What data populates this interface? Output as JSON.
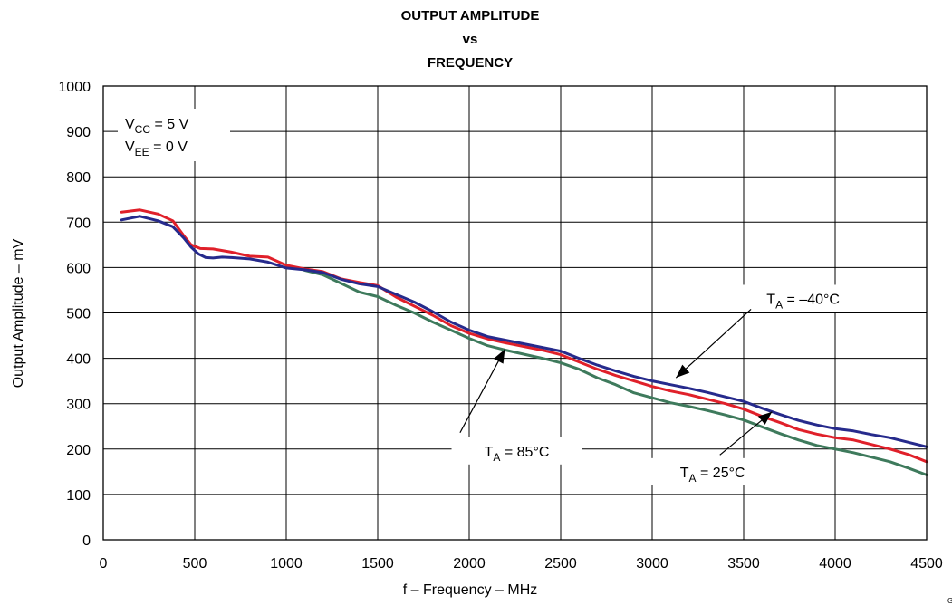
{
  "chart_data": {
    "type": "line",
    "title_lines": [
      "OUTPUT AMPLITUDE",
      "vs",
      "FREQUENCY"
    ],
    "xlabel": "f – Frequency – MHz",
    "ylabel": "Output Amplitude – mV",
    "xlim": [
      0,
      4500
    ],
    "ylim": [
      0,
      1000
    ],
    "xticks": [
      0,
      500,
      1000,
      1500,
      2000,
      2500,
      3000,
      3500,
      4000,
      4500
    ],
    "yticks": [
      0,
      100,
      200,
      300,
      400,
      500,
      600,
      700,
      800,
      900,
      1000
    ],
    "grid": true,
    "conditions": [
      {
        "main": "V",
        "sub": "CC",
        "rest": " = 5 V"
      },
      {
        "main": "V",
        "sub": "EE",
        "rest": " = 0 V"
      }
    ],
    "series": [
      {
        "name": "TA = 25°C",
        "label": {
          "main": "T",
          "sub": "A",
          "rest": " = 25°C"
        },
        "color": "#e0202a",
        "points": [
          [
            100,
            722
          ],
          [
            200,
            727
          ],
          [
            300,
            718
          ],
          [
            380,
            703
          ],
          [
            440,
            670
          ],
          [
            480,
            650
          ],
          [
            530,
            642
          ],
          [
            600,
            641
          ],
          [
            700,
            634
          ],
          [
            800,
            625
          ],
          [
            900,
            623
          ],
          [
            1000,
            605
          ],
          [
            1100,
            597
          ],
          [
            1200,
            591
          ],
          [
            1300,
            575
          ],
          [
            1400,
            567
          ],
          [
            1500,
            560
          ],
          [
            1600,
            535
          ],
          [
            1700,
            515
          ],
          [
            1800,
            495
          ],
          [
            1900,
            472
          ],
          [
            2000,
            455
          ],
          [
            2100,
            443
          ],
          [
            2200,
            434
          ],
          [
            2300,
            426
          ],
          [
            2400,
            418
          ],
          [
            2500,
            408
          ],
          [
            2600,
            392
          ],
          [
            2700,
            376
          ],
          [
            2800,
            362
          ],
          [
            2900,
            350
          ],
          [
            3000,
            338
          ],
          [
            3100,
            328
          ],
          [
            3200,
            320
          ],
          [
            3300,
            310
          ],
          [
            3400,
            300
          ],
          [
            3500,
            288
          ],
          [
            3600,
            272
          ],
          [
            3700,
            258
          ],
          [
            3800,
            243
          ],
          [
            3900,
            233
          ],
          [
            4000,
            225
          ],
          [
            4100,
            220
          ],
          [
            4200,
            210
          ],
          [
            4300,
            200
          ],
          [
            4400,
            188
          ],
          [
            4500,
            172
          ]
        ]
      },
      {
        "name": "TA = -40°C",
        "label": {
          "main": "T",
          "sub": "A",
          "rest": " = –40°C"
        },
        "color": "#262a8c",
        "points": [
          [
            100,
            705
          ],
          [
            200,
            713
          ],
          [
            300,
            703
          ],
          [
            380,
            690
          ],
          [
            440,
            665
          ],
          [
            480,
            645
          ],
          [
            520,
            630
          ],
          [
            560,
            622
          ],
          [
            600,
            621
          ],
          [
            650,
            623
          ],
          [
            700,
            622
          ],
          [
            800,
            619
          ],
          [
            900,
            612
          ],
          [
            1000,
            599
          ],
          [
            1100,
            595
          ],
          [
            1200,
            589
          ],
          [
            1300,
            574
          ],
          [
            1400,
            564
          ],
          [
            1500,
            558
          ],
          [
            1600,
            541
          ],
          [
            1700,
            524
          ],
          [
            1800,
            503
          ],
          [
            1900,
            480
          ],
          [
            2000,
            462
          ],
          [
            2100,
            448
          ],
          [
            2200,
            440
          ],
          [
            2300,
            432
          ],
          [
            2400,
            424
          ],
          [
            2500,
            416
          ],
          [
            2600,
            400
          ],
          [
            2700,
            385
          ],
          [
            2800,
            372
          ],
          [
            2900,
            360
          ],
          [
            3000,
            350
          ],
          [
            3100,
            342
          ],
          [
            3200,
            334
          ],
          [
            3300,
            325
          ],
          [
            3400,
            315
          ],
          [
            3500,
            305
          ],
          [
            3600,
            290
          ],
          [
            3700,
            276
          ],
          [
            3800,
            263
          ],
          [
            3900,
            253
          ],
          [
            4000,
            245
          ],
          [
            4100,
            240
          ],
          [
            4200,
            232
          ],
          [
            4300,
            225
          ],
          [
            4400,
            215
          ],
          [
            4500,
            205
          ]
        ]
      },
      {
        "name": "TA = 85°C",
        "label": {
          "main": "T",
          "sub": "A",
          "rest": " = 85°C"
        },
        "color": "#3e7a5c",
        "points": [
          [
            1100,
            594
          ],
          [
            1200,
            584
          ],
          [
            1300,
            565
          ],
          [
            1400,
            546
          ],
          [
            1500,
            536
          ],
          [
            1600,
            517
          ],
          [
            1700,
            500
          ],
          [
            1800,
            480
          ],
          [
            1900,
            462
          ],
          [
            2000,
            444
          ],
          [
            2100,
            428
          ],
          [
            2200,
            418
          ],
          [
            2300,
            409
          ],
          [
            2400,
            400
          ],
          [
            2500,
            390
          ],
          [
            2600,
            376
          ],
          [
            2700,
            357
          ],
          [
            2800,
            342
          ],
          [
            2900,
            324
          ],
          [
            3000,
            313
          ],
          [
            3100,
            302
          ],
          [
            3200,
            294
          ],
          [
            3300,
            285
          ],
          [
            3400,
            275
          ],
          [
            3500,
            264
          ],
          [
            3600,
            249
          ],
          [
            3700,
            234
          ],
          [
            3800,
            220
          ],
          [
            3900,
            208
          ],
          [
            4000,
            200
          ],
          [
            4100,
            192
          ],
          [
            4200,
            182
          ],
          [
            4300,
            172
          ],
          [
            4400,
            158
          ],
          [
            4500,
            143
          ]
        ]
      }
    ],
    "annotations": [
      {
        "series": 1,
        "label_at": [
          3825,
          532
        ],
        "arrow_from": [
          3540,
          508
        ],
        "arrow_to": [
          3130,
          357
        ]
      },
      {
        "series": 0,
        "label_at": [
          3330,
          150
        ],
        "arrow_from": [
          3370,
          187
        ],
        "arrow_to": [
          3655,
          282
        ]
      },
      {
        "series": 2,
        "label_at": [
          2260,
          196
        ],
        "arrow_from": [
          1950,
          236
        ],
        "arrow_to": [
          2195,
          420
        ]
      }
    ],
    "figure_id": "G001"
  }
}
